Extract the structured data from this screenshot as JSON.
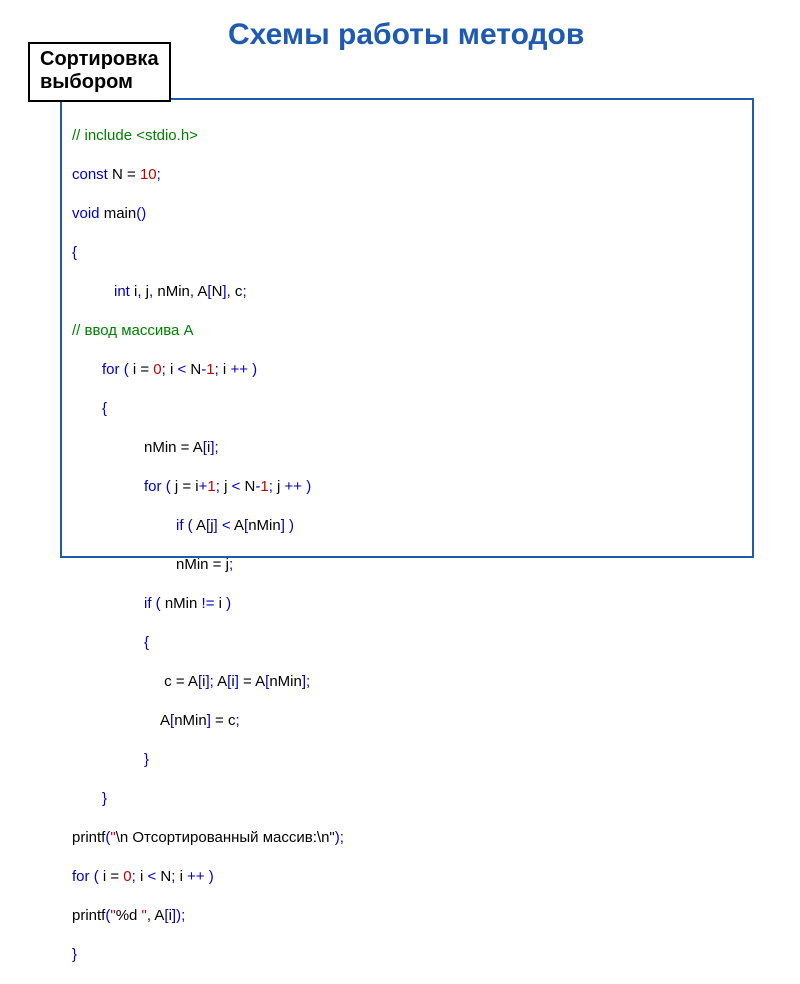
{
  "title": "Схемы работы методов",
  "label": {
    "line1": "Сортировка",
    "line2": "выбором"
  },
  "colors": {
    "title": "#1e5bb0",
    "border": "#1e5bb0",
    "keyword": "#0000c8",
    "number": "#c00000",
    "punct": "#0000c8",
    "comment": "#008000",
    "text": "#000000",
    "bg": "#ffffff"
  },
  "typography": {
    "title_fontsize": 30,
    "label_fontsize": 20,
    "code_fontsize": 15,
    "code_font": "Verdana"
  },
  "code": {
    "l0a": "// include <stdio.h>",
    "l1_const": "const",
    "l1_eq": " N = ",
    "l1_ten": "10",
    "l2_void": "void",
    "l2_main": " main",
    "l2_par": "()",
    "l3_brace": "{",
    "l4_int": "int",
    "l4_rest": " i",
    "l4_c1": ",",
    "l4_j": " j",
    "l4_c2": ",",
    "l4_nmin": " nMin",
    "l4_c3": ",",
    "l4_A": " A",
    "l4_lb": "[",
    "l4_N": "N",
    "l4_rb": "]",
    "l4_c4": ",",
    "l4_cvar": " c",
    "l4_sc": ";",
    "l5": "// ввод массива A",
    "l6_for": "for",
    "l6_sp": " ",
    "l6_lp": "(",
    "l6_ieq": " i = ",
    "l6_0": "0",
    "l6_sc": ";",
    "l6_ilt": " i ",
    "l6_lt": "<",
    "l6_N": " N",
    "l6_minus": "-",
    "l6_1": "1",
    "l6_sc2": ";",
    "l6_i": " i ",
    "l6_pp": "++",
    "l6_rp": " )",
    "l7_brace": "{",
    "l8_nmin": "nMin = A",
    "l8_lb": "[",
    "l8_i": "i",
    "l8_rb": "]",
    "l8_sc": ";",
    "l9_for": "for",
    "l9_sp": " ",
    "l9_lp": "(",
    "l9_jeq": " j = i",
    "l9_plus": "+",
    "l9_1": "1",
    "l9_sc": ";",
    "l9_j": " j ",
    "l9_lt": "<",
    "l9_N": " N",
    "l9_minus": "-",
    "l9_1b": "1",
    "l9_sc2": ";",
    "l9_jv": " j ",
    "l9_pp": "++",
    "l9_rp": " )",
    "l10_if": "if",
    "l10_sp": " ",
    "l10_lp": "(",
    "l10_A": " A",
    "l10_lb": "[",
    "l10_j": "j",
    "l10_rb": "]",
    "l10_sp2": " ",
    "l10_lt": "<",
    "l10_A2": " A",
    "l10_lb2": "[",
    "l10_nmin": "nMin",
    "l10_rb2": "]",
    "l10_rp": " )",
    "l11": "nMin = j",
    "l11_sc": ";",
    "l12_if": "if",
    "l12_sp": " ",
    "l12_lp": "(",
    "l12_body": " nMin ",
    "l12_ne": "!=",
    "l12_i": " i ",
    "l12_rp": ")",
    "l13_brace": "{",
    "l14_a": " c = A",
    "l14_lb": "[",
    "l14_i": "i",
    "l14_rb": "]",
    "l14_sc": ";",
    "l14_b": " A",
    "l14_lb2": "[",
    "l14_i2": "i",
    "l14_rb2": "]",
    "l14_eq": " = A",
    "l14_lb3": "[",
    "l14_nmin": "nMin",
    "l14_rb3": "]",
    "l14_sc2": ";",
    "l15_a": "A",
    "l15_lb": "[",
    "l15_nmin": "nMin",
    "l15_rb": "]",
    "l15_eq": " = c",
    "l15_sc": ";",
    "l16_brace": "}",
    "l17_brace": "}",
    "l18_p": "printf",
    "l18_lp": "(",
    "l18_q": "\"",
    "l18_s": "\\n Отсортированный массив:\\n\"",
    "l18_rp": ");",
    "l19_for": "for",
    "l19_sp": " ",
    "l19_lp": "(",
    "l19_ieq": " i = ",
    "l19_0": "0",
    "l19_sc": ";",
    "l19_i": " i ",
    "l19_lt": "<",
    "l19_N": " N",
    "l19_sc2": ";",
    "l19_iv": " i ",
    "l19_pp": "++",
    "l19_rp": " )",
    "l20_p": "printf",
    "l20_lp": "(",
    "l20_q": "\"",
    "l20_s": "%d ",
    "l20_q2": "\"",
    "l20_c": ",",
    "l20_A": " A",
    "l20_lb": "[",
    "l20_i": "i",
    "l20_rb": "]",
    "l20_rp": ");",
    "l21_brace": "}"
  }
}
